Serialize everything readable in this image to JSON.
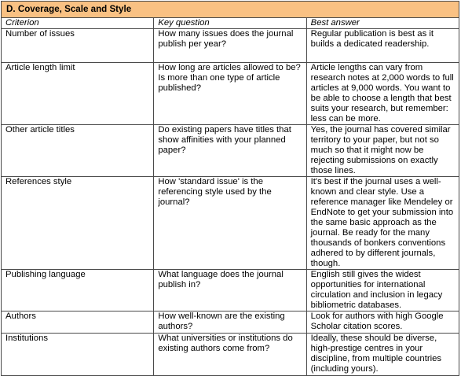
{
  "table": {
    "title": "D. Coverage, Scale and Style",
    "headers": [
      "Criterion",
      "Key question",
      "Best answer"
    ],
    "rows": [
      {
        "criterion": "Number of issues",
        "question": "How many issues does the journal publish per year?",
        "answer": "Regular publication is best as it builds a dedicated readership."
      },
      {
        "criterion": "Article length limit",
        "question": "How long are articles allowed to be? Is more than one type of article published?",
        "answer": "Article lengths can vary from research notes at 2,000 words to full articles at 9,000 words. You want to be able to choose a length that best suits your research, but remember: less can be more."
      },
      {
        "criterion": "Other article titles",
        "question": "Do existing papers have titles that show affinities with your planned paper?",
        "answer": "Yes, the journal has covered similar territory to your paper, but not so much so that it might now be rejecting submissions on exactly those lines."
      },
      {
        "criterion": "References style",
        "question": "How 'standard issue' is the referencing style used by the journal?",
        "answer": "It's best if the journal uses a well-known and clear style. Use a reference manager like Mendeley or EndNote to get your submission into the same basic approach as the journal. Be ready for the many thousands of bonkers conventions adhered to by different journals, though."
      },
      {
        "criterion": "Publishing language",
        "question": "What language does the journal publish in?",
        "answer": "English still gives the widest opportunities for international circulation and inclusion in legacy bibliometric databases."
      },
      {
        "criterion": "Authors",
        "question": "How well-known are the existing authors?",
        "answer": "Look for authors with high Google Scholar citation scores."
      },
      {
        "criterion": "Institutions",
        "question": "What universities or institutions do existing authors come from?",
        "answer": "Ideally, these should be diverse, high-prestige centres in your discipline, from multiple countries (including yours)."
      }
    ]
  },
  "colors": {
    "title_background": "#f9c183",
    "border": "#4a4a4a",
    "text": "#000000"
  }
}
